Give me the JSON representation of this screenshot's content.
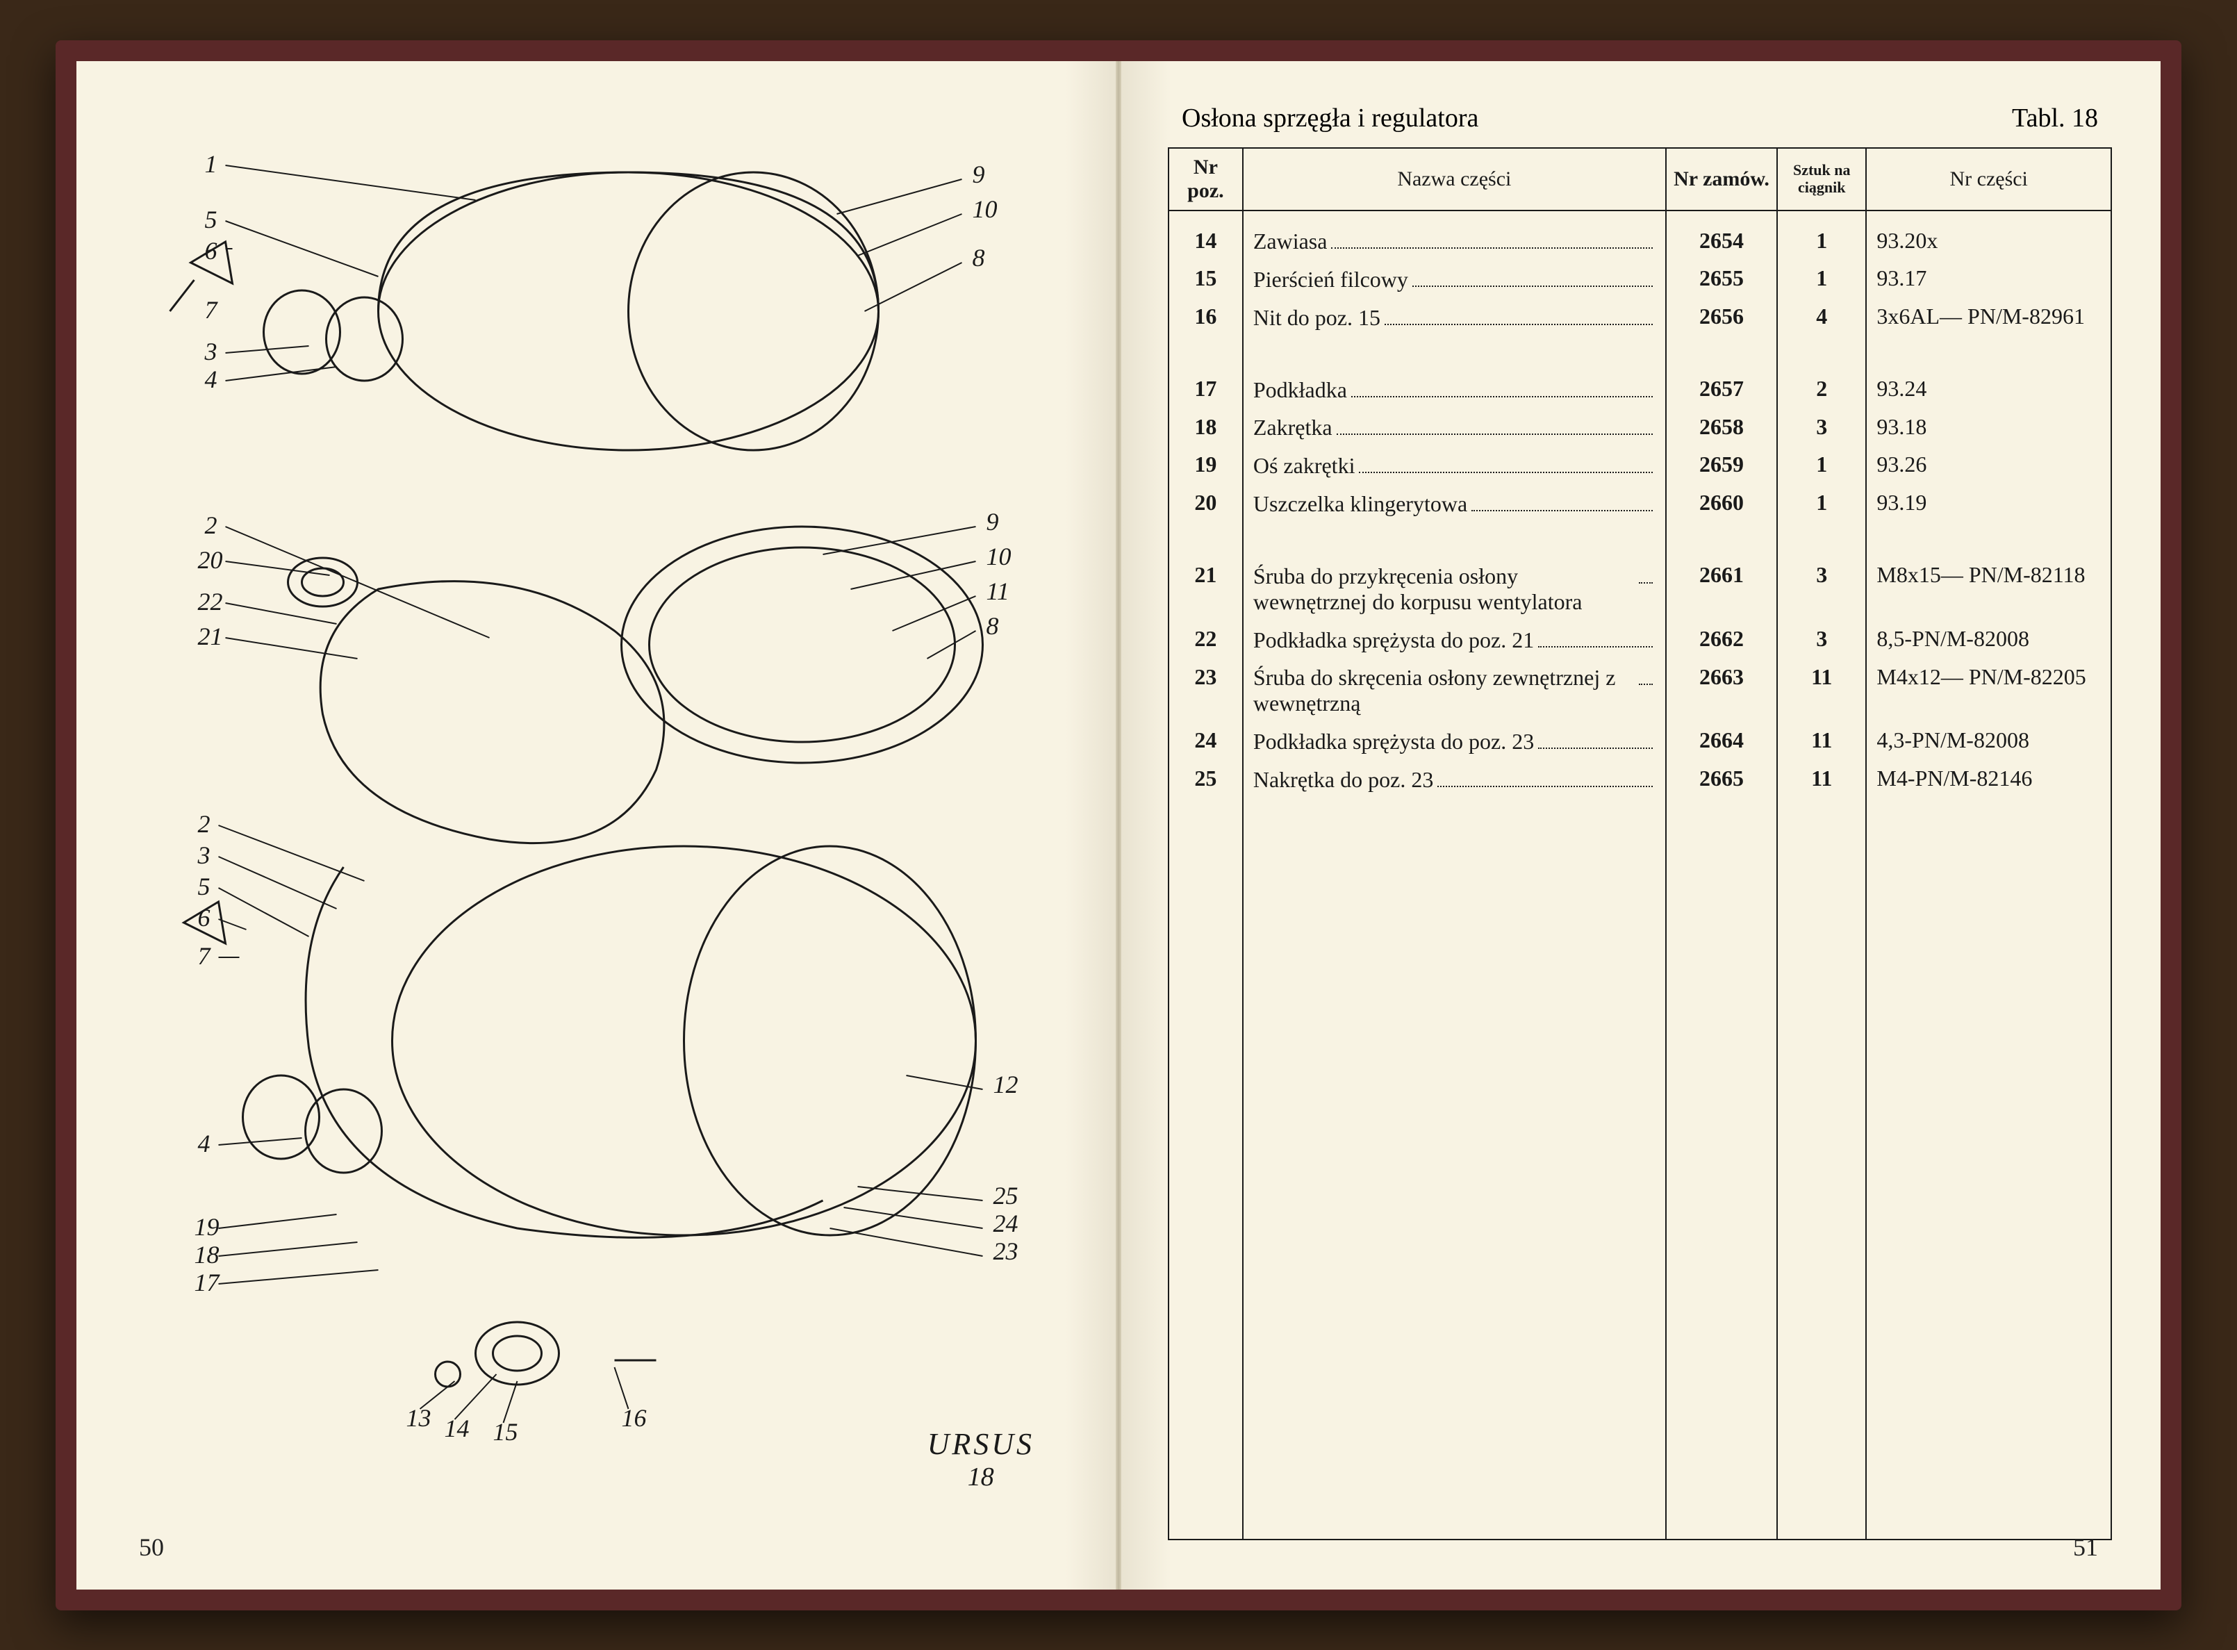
{
  "leftPage": {
    "pageNumber": "50",
    "brand": "URSUS",
    "tableRef": "18",
    "calloutsTop": [
      "1",
      "5",
      "6",
      "7",
      "3",
      "4",
      "9",
      "10",
      "8"
    ],
    "calloutsMid": [
      "2",
      "20",
      "22",
      "21",
      "9",
      "10",
      "11",
      "8"
    ],
    "calloutsBottom": [
      "2",
      "3",
      "5",
      "6",
      "7",
      "4",
      "19",
      "18",
      "17",
      "13",
      "14",
      "15",
      "16",
      "12",
      "25",
      "24",
      "23"
    ]
  },
  "rightPage": {
    "pageNumber": "51",
    "title": "Osłona sprzęgła i regulatora",
    "tablLabel": "Tabl. 18",
    "columns": {
      "poz": "Nr poz.",
      "name": "Nazwa części",
      "order": "Nr zamów.",
      "qty": "Sztuk na ciągnik",
      "part": "Nr części"
    },
    "rows": [
      {
        "poz": "14",
        "name": "Zawiasa",
        "order": "2654",
        "qty": "1",
        "part": "93.20x"
      },
      {
        "poz": "15",
        "name": "Pierścień filcowy",
        "order": "2655",
        "qty": "1",
        "part": "93.17"
      },
      {
        "poz": "16",
        "name": "Nit do poz. 15",
        "order": "2656",
        "qty": "4",
        "part": "3x6AL— PN/M-82961"
      },
      {
        "poz": "17",
        "name": "Podkładka",
        "order": "2657",
        "qty": "2",
        "part": "93.24"
      },
      {
        "poz": "18",
        "name": "Zakrętka",
        "order": "2658",
        "qty": "3",
        "part": "93.18"
      },
      {
        "poz": "19",
        "name": "Oś zakrętki",
        "order": "2659",
        "qty": "1",
        "part": "93.26"
      },
      {
        "poz": "20",
        "name": "Uszczelka klingerytowa",
        "order": "2660",
        "qty": "1",
        "part": "93.19"
      },
      {
        "poz": "21",
        "name": "Śruba do przykręcenia osłony wewnętrznej do korpusu wentylatora",
        "order": "2661",
        "qty": "3",
        "part": "M8x15— PN/M-82118"
      },
      {
        "poz": "22",
        "name": "Podkładka sprężysta do poz. 21",
        "order": "2662",
        "qty": "3",
        "part": "8,5-PN/M-82008"
      },
      {
        "poz": "23",
        "name": "Śruba do skręcenia osłony zewnętrznej z wewnętrzną",
        "order": "2663",
        "qty": "11",
        "part": "M4x12— PN/M-82205"
      },
      {
        "poz": "24",
        "name": "Podkładka sprężysta do poz. 23",
        "order": "2664",
        "qty": "11",
        "part": "4,3-PN/M-82008"
      },
      {
        "poz": "25",
        "name": "Nakrętka do poz. 23",
        "order": "2665",
        "qty": "11",
        "part": "M4-PN/M-82146"
      }
    ],
    "gapAfter": [
      2,
      6
    ]
  },
  "style": {
    "pageBg": "#f8f3e3",
    "ink": "#1a1a1a",
    "coverColor": "#5a2828",
    "woodBg": "#3a2818",
    "bodyFontSize": 32,
    "headerFontSize": 38
  }
}
